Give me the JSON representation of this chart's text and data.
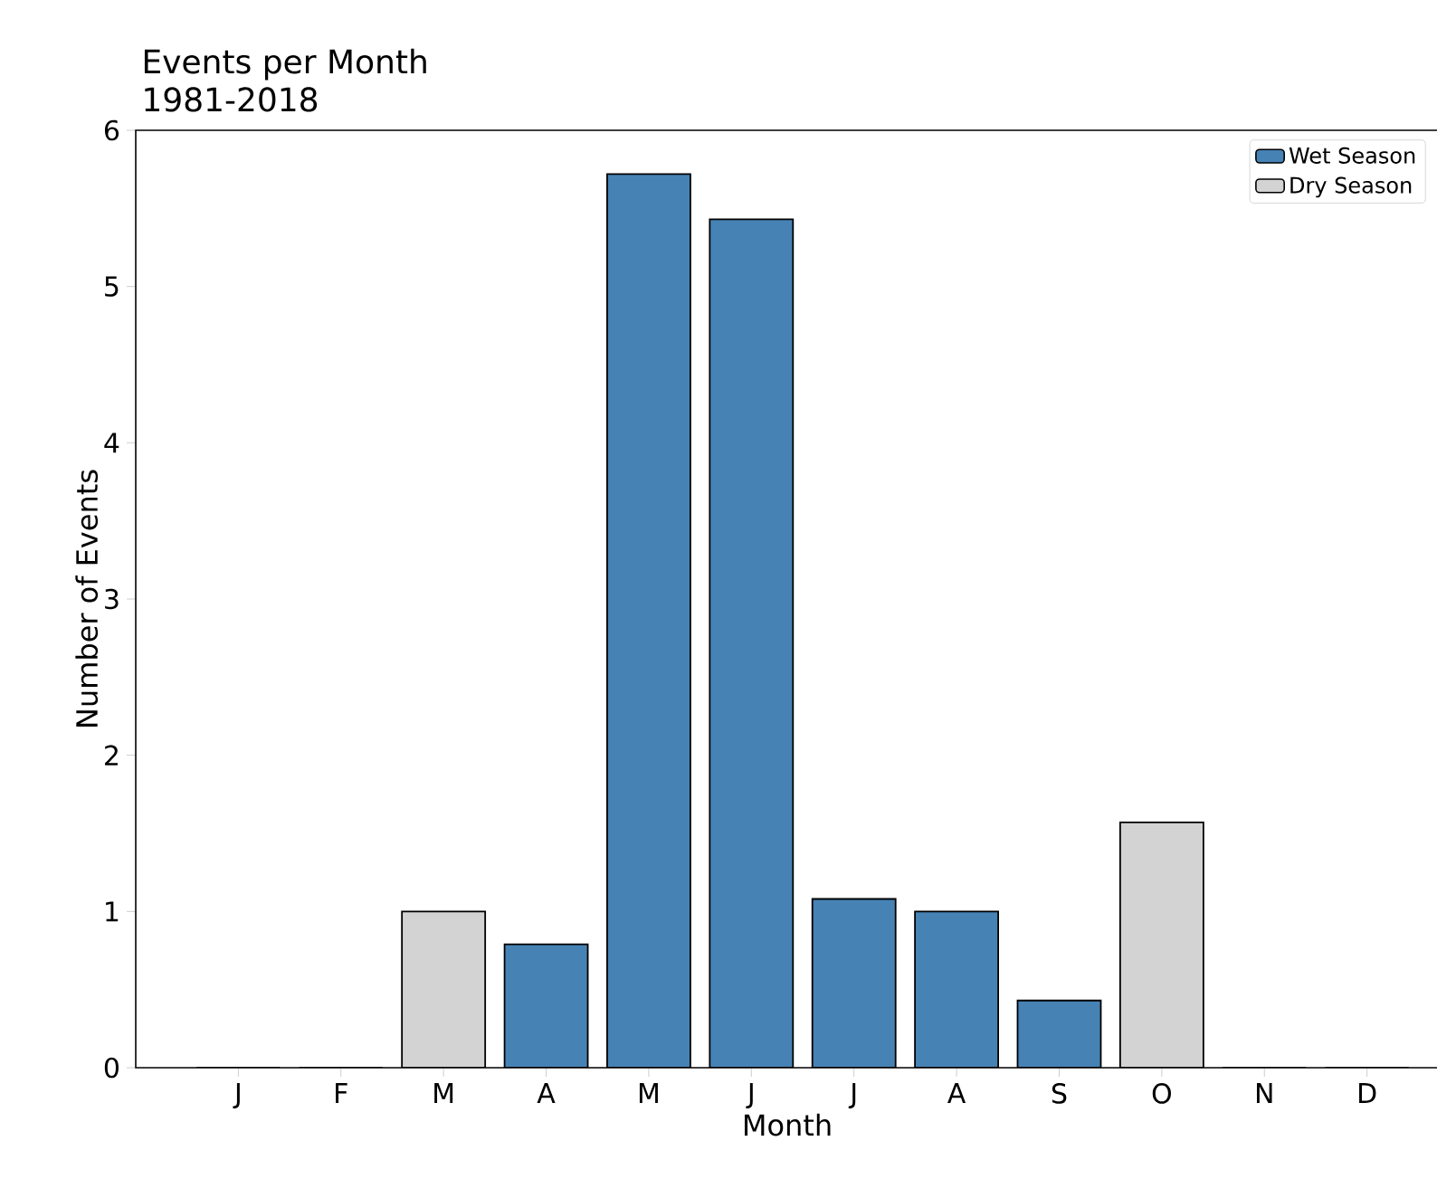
{
  "chart_data": {
    "type": "bar",
    "title": "Events per Month",
    "subtitle": "1981-2018",
    "xlabel": "Month",
    "ylabel": "Number of Events",
    "categories": [
      "J",
      "F",
      "M",
      "A",
      "M",
      "J",
      "J",
      "A",
      "S",
      "O",
      "N",
      "D"
    ],
    "series": [
      {
        "name": "Wet Season",
        "color": "#4682b4",
        "values": [
          null,
          null,
          null,
          0.79,
          5.72,
          5.43,
          1.08,
          1.0,
          0.43,
          null,
          null,
          null
        ]
      },
      {
        "name": "Dry Season",
        "color": "#d3d3d3",
        "values": [
          0,
          0,
          1.0,
          null,
          null,
          null,
          null,
          null,
          null,
          1.57,
          0,
          0
        ]
      }
    ],
    "ylim": [
      0,
      6
    ],
    "yticks": [
      0,
      1,
      2,
      3,
      4,
      5,
      6
    ],
    "legend": "top right",
    "grid": false
  }
}
